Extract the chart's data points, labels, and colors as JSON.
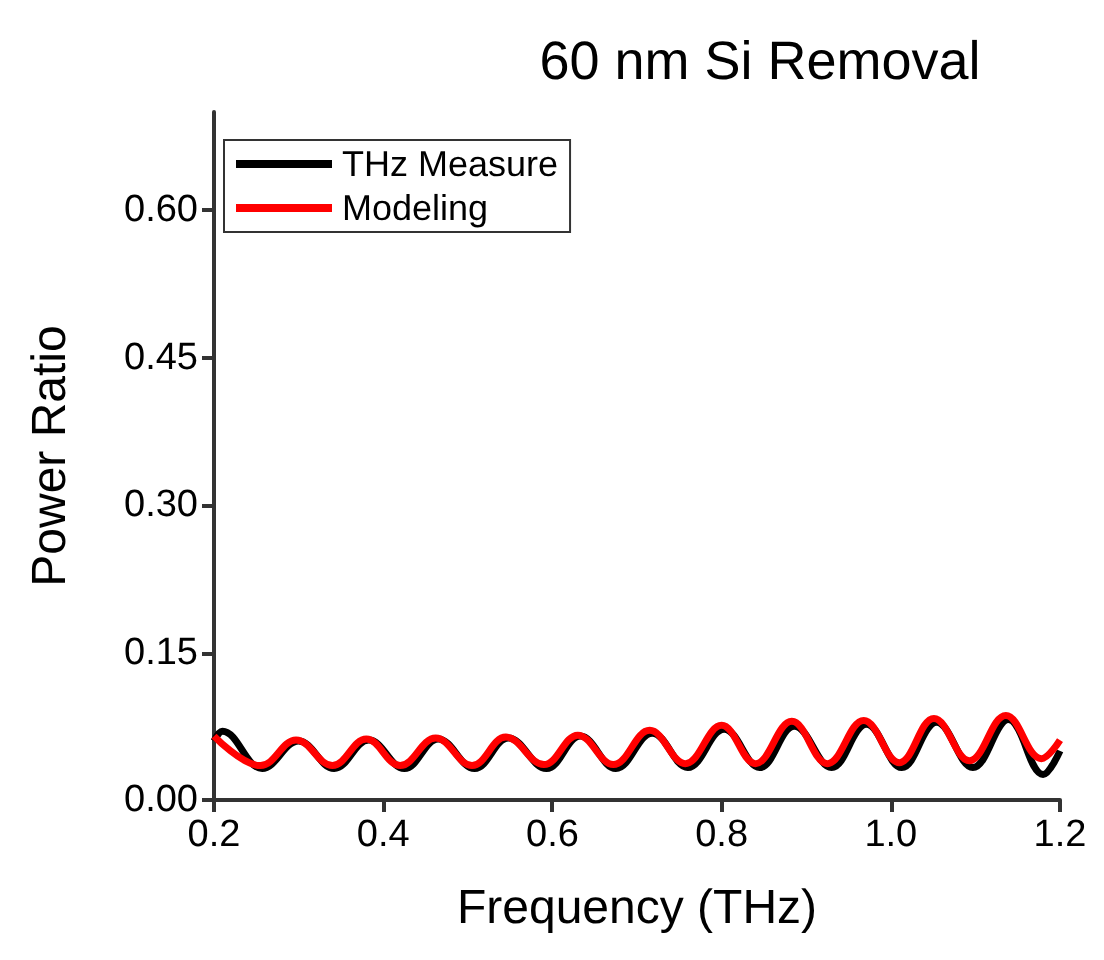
{
  "chart_data": {
    "type": "line",
    "title": "60 nm Si Removal",
    "xlabel": "Frequency (THz)",
    "ylabel": "Power Ratio",
    "xlim": [
      0.2,
      1.2
    ],
    "xticks": [
      0.2,
      0.4,
      0.6,
      0.8,
      {
        "value": 1,
        "label": "1.0"
      },
      1.2
    ],
    "ylim": [
      0,
      0.7
    ],
    "yticks": [
      {
        "value": 0,
        "label": "0.00"
      },
      {
        "value": 0.15,
        "label": "0.15"
      },
      {
        "value": 0.3,
        "label": "0.30"
      },
      {
        "value": 0.45,
        "label": "0.45"
      },
      {
        "value": 0.6,
        "label": "0.60"
      }
    ],
    "grid": false,
    "legend": "top left",
    "marker": "none",
    "line_style": "solid",
    "series": [
      {
        "name": "THz Measure",
        "color": "#000000",
        "x": [
          0.2,
          0.21,
          0.257,
          0.3,
          0.342,
          0.383,
          0.425,
          0.465,
          0.508,
          0.548,
          0.593,
          0.633,
          0.675,
          0.718,
          0.76,
          0.803,
          0.845,
          0.886,
          0.93,
          0.971,
          1.013,
          1.054,
          1.097,
          1.139,
          1.18,
          1.2
        ],
        "values": [
          0.06,
          0.07,
          0.032,
          0.06,
          0.032,
          0.061,
          0.032,
          0.062,
          0.032,
          0.063,
          0.032,
          0.065,
          0.032,
          0.068,
          0.033,
          0.072,
          0.033,
          0.075,
          0.033,
          0.077,
          0.033,
          0.079,
          0.033,
          0.082,
          0.026,
          0.05
        ]
      },
      {
        "name": "Modeling",
        "color": "#ff0000",
        "x": [
          0.2,
          0.255,
          0.297,
          0.34,
          0.38,
          0.42,
          0.462,
          0.505,
          0.545,
          0.59,
          0.63,
          0.672,
          0.715,
          0.757,
          0.8,
          0.84,
          0.883,
          0.925,
          0.968,
          1.01,
          1.051,
          1.093,
          1.136,
          1.178,
          1.2
        ],
        "values": [
          0.065,
          0.035,
          0.061,
          0.035,
          0.062,
          0.035,
          0.063,
          0.035,
          0.064,
          0.036,
          0.066,
          0.036,
          0.071,
          0.037,
          0.076,
          0.037,
          0.08,
          0.037,
          0.081,
          0.038,
          0.083,
          0.04,
          0.086,
          0.042,
          0.061
        ]
      }
    ]
  }
}
